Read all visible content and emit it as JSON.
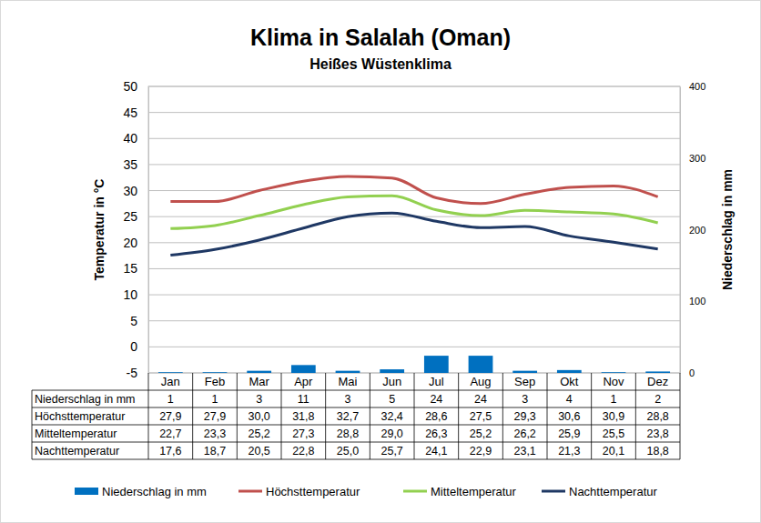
{
  "chart_data": {
    "type": "combo",
    "title": "Klima in Salalah (Oman)",
    "subtitle": "Heißes Wüstenklima",
    "ylabel": "Temperatur in °C",
    "y2label": "Niederschlag in mm",
    "categories": [
      "Jan",
      "Feb",
      "Mar",
      "Apr",
      "Mai",
      "Jun",
      "Jul",
      "Aug",
      "Sep",
      "Okt",
      "Nov",
      "Dez"
    ],
    "ylim": [
      -5,
      50
    ],
    "yticks": [
      -5,
      0,
      5,
      10,
      15,
      20,
      25,
      30,
      35,
      40,
      45,
      50
    ],
    "y2lim": [
      0,
      400
    ],
    "y2ticks": [
      0,
      100,
      200,
      300,
      400
    ],
    "grid": true,
    "legend": "bottom",
    "series": [
      {
        "name": "Niederschlag in mm",
        "type": "bar",
        "axis": "y2",
        "color": "#0070c0",
        "values": [
          1,
          1,
          3,
          11,
          3,
          5,
          24,
          24,
          3,
          4,
          1,
          2
        ]
      },
      {
        "name": "Höchsttemperatur",
        "type": "line",
        "color": "#c0504d",
        "values": [
          27.9,
          27.9,
          30.0,
          31.8,
          32.7,
          32.4,
          28.6,
          27.5,
          29.3,
          30.6,
          30.9,
          28.8
        ],
        "value_labels": [
          "27,9",
          "27,9",
          "30,0",
          "31,8",
          "32,7",
          "32,4",
          "28,6",
          "27,5",
          "29,3",
          "30,6",
          "30,9",
          "28,8"
        ]
      },
      {
        "name": "Mitteltemperatur",
        "type": "line",
        "color": "#92d050",
        "values": [
          22.7,
          23.3,
          25.2,
          27.3,
          28.8,
          29.0,
          26.3,
          25.2,
          26.2,
          25.9,
          25.5,
          23.8
        ],
        "value_labels": [
          "22,7",
          "23,3",
          "25,2",
          "27,3",
          "28,8",
          "29,0",
          "26,3",
          "25,2",
          "26,2",
          "25,9",
          "25,5",
          "23,8"
        ]
      },
      {
        "name": "Nachttemperatur",
        "type": "line",
        "color": "#1f3864",
        "values": [
          17.6,
          18.7,
          20.5,
          22.8,
          25.0,
          25.7,
          24.1,
          22.9,
          23.1,
          21.3,
          20.1,
          18.8
        ],
        "value_labels": [
          "17,6",
          "18,7",
          "20,5",
          "22,8",
          "25,0",
          "25,7",
          "24,1",
          "22,9",
          "23,1",
          "21,3",
          "20,1",
          "18,8"
        ]
      }
    ]
  }
}
